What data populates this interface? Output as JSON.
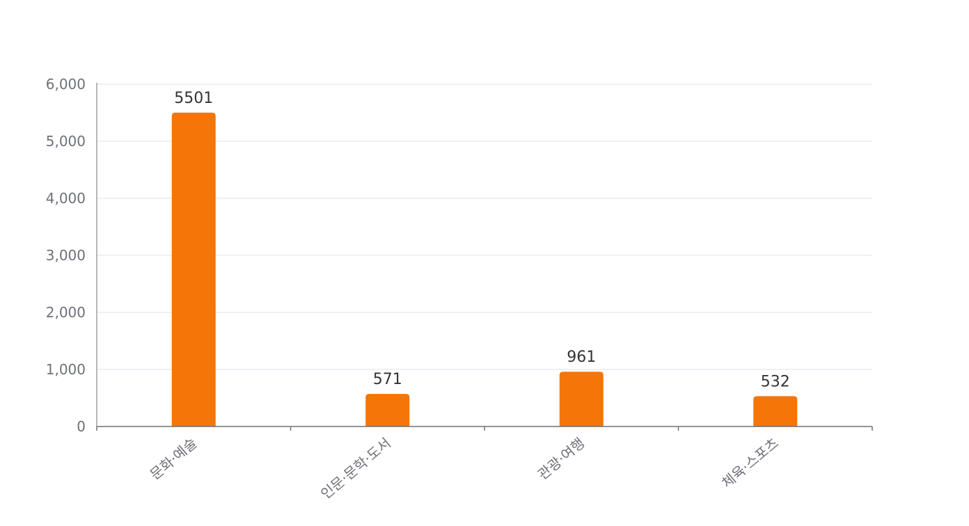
{
  "chart_data": {
    "type": "bar",
    "categories": [
      "문화·예술",
      "인문·문학·도서",
      "관광·여행",
      "체육·스포츠"
    ],
    "values": [
      5501,
      571,
      961,
      532
    ],
    "ylim": [
      0,
      6000
    ],
    "yticks": [
      0,
      1000,
      2000,
      3000,
      4000,
      5000,
      6000
    ],
    "ytick_labels": [
      "0",
      "1,000",
      "2,000",
      "3,000",
      "4,000",
      "5,000",
      "6,000"
    ],
    "data_labels": [
      "5501",
      "571",
      "961",
      "532"
    ],
    "grid": true,
    "colors": {
      "bar": "#f57509",
      "grid": "#dfe2ec",
      "axis": "#6e7079",
      "tick_label": "#6e7079",
      "data_label": "#333333"
    }
  }
}
